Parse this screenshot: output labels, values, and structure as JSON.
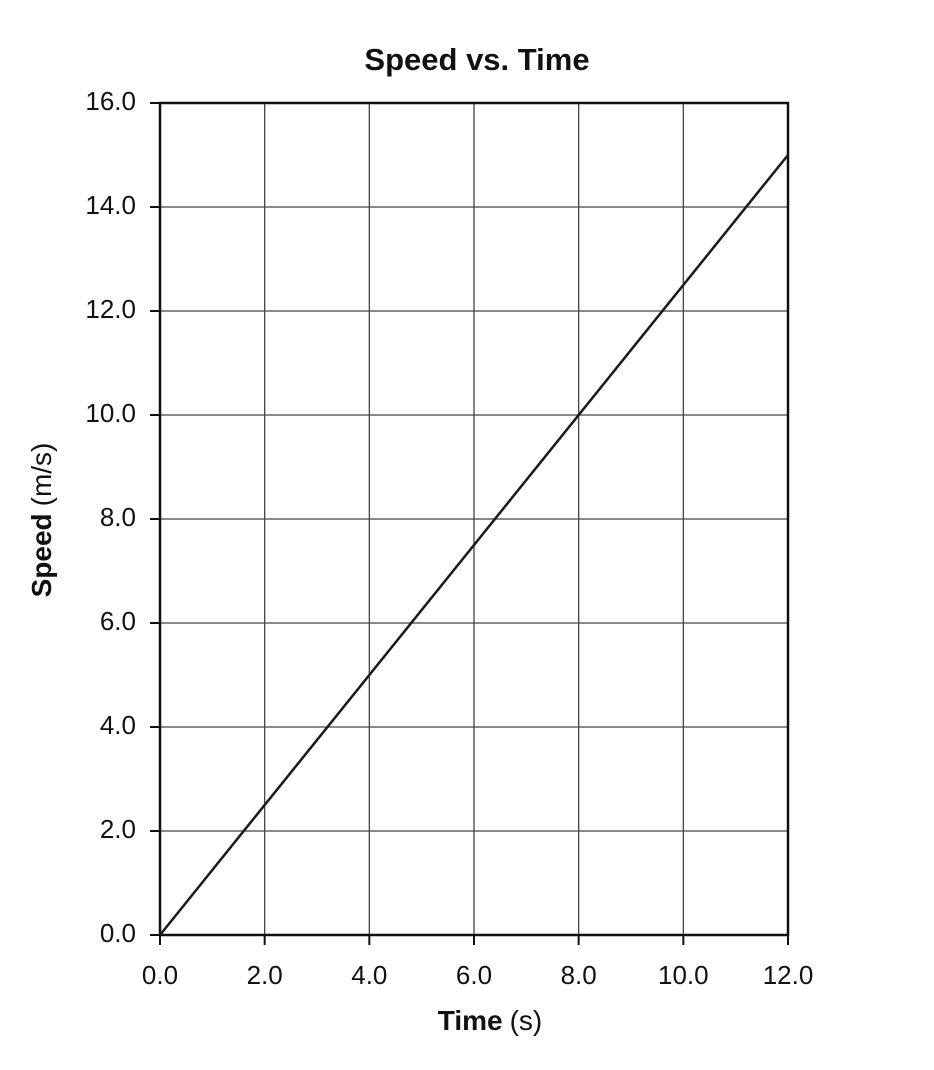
{
  "chart_data": {
    "type": "line",
    "title": "Speed vs. Time",
    "xlabel": {
      "name": "Time",
      "unit": "(s)"
    },
    "ylabel": {
      "name": "Speed",
      "unit": "(m/s)"
    },
    "x": [
      0,
      12
    ],
    "values": [
      0,
      15
    ],
    "color": "#1a1a1a",
    "xlim": [
      0,
      12
    ],
    "ylim": [
      0,
      16
    ],
    "xticks": [
      {
        "value": 0,
        "label": "0.0"
      },
      {
        "value": 2,
        "label": "2.0"
      },
      {
        "value": 4,
        "label": "4.0"
      },
      {
        "value": 6,
        "label": "6.0"
      },
      {
        "value": 8,
        "label": "8.0"
      },
      {
        "value": 10,
        "label": "10.0"
      },
      {
        "value": 12,
        "label": "12.0"
      }
    ],
    "yticks": [
      {
        "value": 0,
        "label": "0.0"
      },
      {
        "value": 2,
        "label": "2.0"
      },
      {
        "value": 4,
        "label": "4.0"
      },
      {
        "value": 6,
        "label": "6.0"
      },
      {
        "value": 8,
        "label": "8.0"
      },
      {
        "value": 10,
        "label": "10.0"
      },
      {
        "value": 12,
        "label": "12.0"
      },
      {
        "value": 14,
        "label": "14.0"
      },
      {
        "value": 16,
        "label": "16.0"
      }
    ],
    "grid": true
  }
}
